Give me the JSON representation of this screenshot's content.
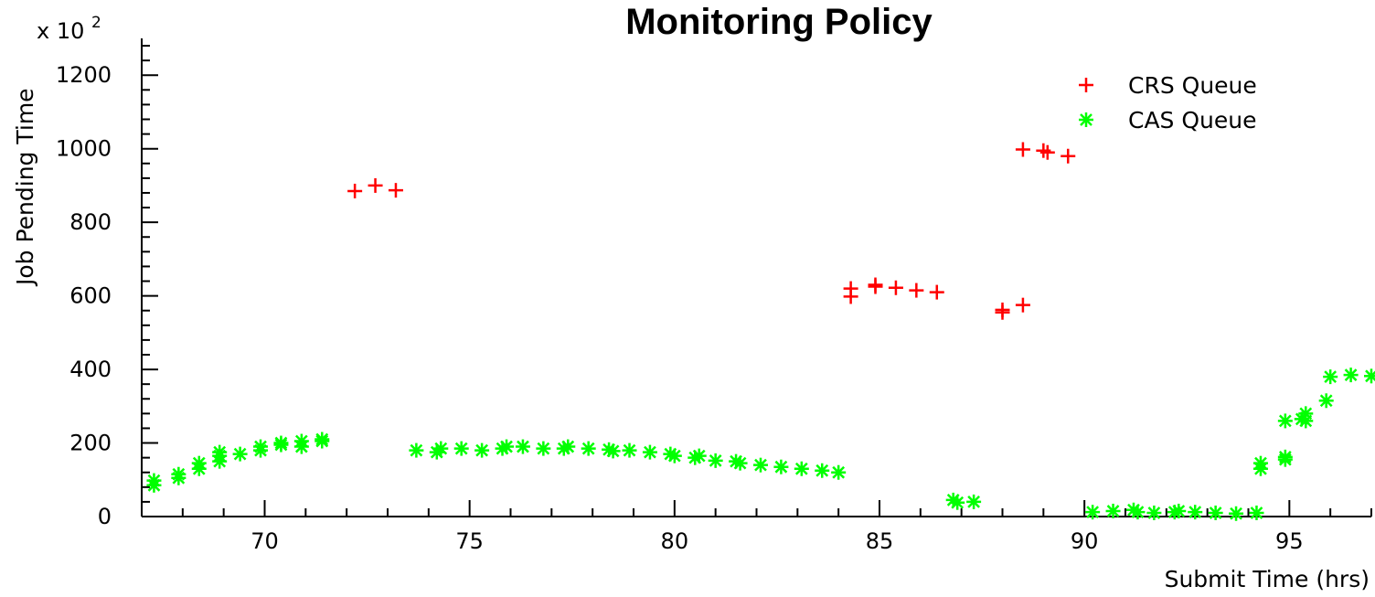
{
  "chart_data": {
    "type": "scatter",
    "title": "Monitoring Policy",
    "xlabel": "Submit Time (hrs)",
    "ylabel": "Job Pending Time",
    "y_multiplier_label": "x 10",
    "y_multiplier_exponent": "2",
    "xlim": [
      67,
      97
    ],
    "ylim": [
      0,
      1300
    ],
    "x_ticks": [
      70,
      75,
      80,
      85,
      90,
      95
    ],
    "x_tick_labels": [
      "70",
      "75",
      "80",
      "85",
      "90",
      "95"
    ],
    "y_ticks": [
      0,
      200,
      400,
      600,
      800,
      1000,
      1200
    ],
    "y_tick_labels": [
      "0",
      "200",
      "400",
      "600",
      "800",
      "1000",
      "1200"
    ],
    "legend_position": "top-right",
    "grid": false,
    "series": [
      {
        "name": "CRS Queue",
        "marker": "plus",
        "color": "#ff0000",
        "points": [
          [
            72.2,
            885
          ],
          [
            72.7,
            900
          ],
          [
            73.2,
            887
          ],
          [
            84.3,
            598
          ],
          [
            84.3,
            620
          ],
          [
            84.9,
            625
          ],
          [
            84.9,
            630
          ],
          [
            85.4,
            622
          ],
          [
            85.9,
            615
          ],
          [
            86.4,
            610
          ],
          [
            88.0,
            555
          ],
          [
            88.0,
            562
          ],
          [
            88.5,
            575
          ],
          [
            88.5,
            998
          ],
          [
            89.0,
            995
          ],
          [
            89.1,
            990
          ],
          [
            89.6,
            980
          ]
        ]
      },
      {
        "name": "CAS Queue",
        "marker": "asterisk",
        "color": "#00ff00",
        "points": [
          [
            67.3,
            85
          ],
          [
            67.3,
            98
          ],
          [
            67.9,
            105
          ],
          [
            67.9,
            115
          ],
          [
            68.4,
            130
          ],
          [
            68.4,
            145
          ],
          [
            68.9,
            150
          ],
          [
            68.9,
            165
          ],
          [
            68.9,
            175
          ],
          [
            69.4,
            170
          ],
          [
            69.9,
            180
          ],
          [
            69.9,
            190
          ],
          [
            70.4,
            195
          ],
          [
            70.4,
            200
          ],
          [
            70.9,
            190
          ],
          [
            70.9,
            205
          ],
          [
            71.4,
            205
          ],
          [
            71.4,
            210
          ],
          [
            73.7,
            180
          ],
          [
            74.2,
            175
          ],
          [
            74.3,
            185
          ],
          [
            74.8,
            185
          ],
          [
            75.3,
            180
          ],
          [
            75.8,
            185
          ],
          [
            75.9,
            190
          ],
          [
            76.3,
            190
          ],
          [
            76.8,
            185
          ],
          [
            77.3,
            185
          ],
          [
            77.4,
            190
          ],
          [
            77.9,
            185
          ],
          [
            78.4,
            182
          ],
          [
            78.5,
            178
          ],
          [
            78.9,
            180
          ],
          [
            79.4,
            175
          ],
          [
            79.9,
            170
          ],
          [
            80.0,
            165
          ],
          [
            80.5,
            160
          ],
          [
            80.6,
            165
          ],
          [
            81.0,
            152
          ],
          [
            81.5,
            150
          ],
          [
            81.6,
            145
          ],
          [
            82.1,
            140
          ],
          [
            82.6,
            135
          ],
          [
            83.1,
            130
          ],
          [
            83.6,
            125
          ],
          [
            84.0,
            120
          ],
          [
            86.8,
            45
          ],
          [
            86.9,
            38
          ],
          [
            87.3,
            40
          ],
          [
            90.2,
            12
          ],
          [
            90.7,
            15
          ],
          [
            91.2,
            18
          ],
          [
            91.3,
            12
          ],
          [
            91.7,
            10
          ],
          [
            92.2,
            12
          ],
          [
            92.3,
            15
          ],
          [
            92.7,
            12
          ],
          [
            93.2,
            10
          ],
          [
            93.7,
            8
          ],
          [
            94.2,
            10
          ],
          [
            94.3,
            130
          ],
          [
            94.3,
            145
          ],
          [
            94.9,
            155
          ],
          [
            94.9,
            162
          ],
          [
            94.9,
            260
          ],
          [
            95.3,
            265
          ],
          [
            95.4,
            280
          ],
          [
            95.4,
            260
          ],
          [
            95.9,
            315
          ],
          [
            96.0,
            380
          ],
          [
            96.5,
            385
          ],
          [
            97.0,
            382
          ]
        ]
      }
    ]
  }
}
